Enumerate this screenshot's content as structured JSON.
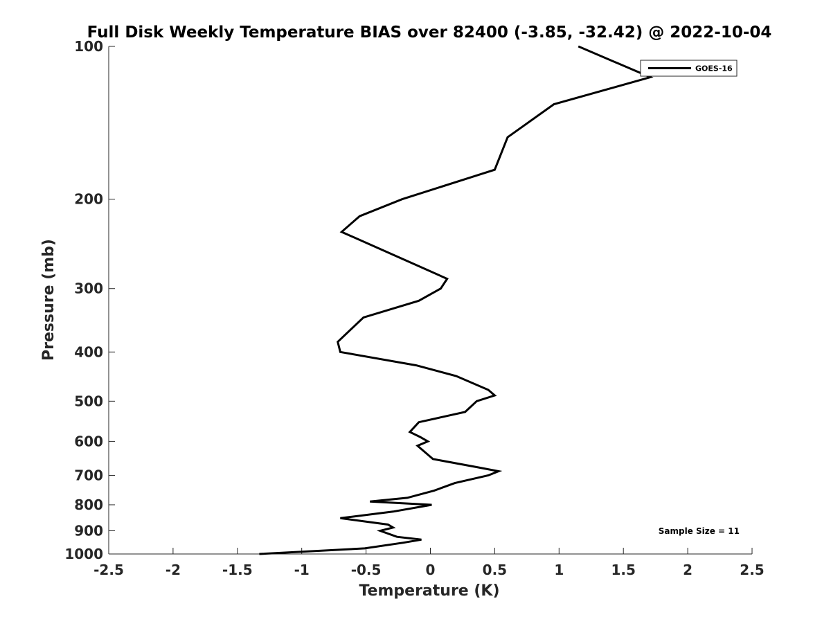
{
  "chart_data": {
    "type": "line",
    "title": "Full Disk Weekly Temperature BIAS over 82400 (-3.85, -32.42) @ 2022-10-04",
    "xlabel": "Temperature (K)",
    "ylabel": "Pressure (mb)",
    "xlim": [
      -2.5,
      2.5
    ],
    "ylim": [
      100,
      1000
    ],
    "y_scale": "log",
    "y_reversed": true,
    "x_ticks": [
      "-2.5",
      "-2",
      "-1.5",
      "-1",
      "-0.5",
      "0",
      "0.5",
      "1",
      "1.5",
      "2",
      "2.5"
    ],
    "x_tick_values": [
      -2.5,
      -2,
      -1.5,
      -1,
      -0.5,
      0,
      0.5,
      1,
      1.5,
      2,
      2.5
    ],
    "y_ticks": [
      "100",
      "200",
      "300",
      "400",
      "500",
      "600",
      "700",
      "800",
      "900",
      "1000"
    ],
    "y_tick_values": [
      100,
      200,
      300,
      400,
      500,
      600,
      700,
      800,
      900,
      1000
    ],
    "grid": false,
    "legend_position": "top-right",
    "annotation": "Sample Size = 11",
    "series": [
      {
        "name": "GOES-16",
        "color": "#000000",
        "points": [
          {
            "t": 1.15,
            "p": 100
          },
          {
            "t": 1.71,
            "p": 115
          },
          {
            "t": 0.96,
            "p": 130
          },
          {
            "t": 0.6,
            "p": 151
          },
          {
            "t": 0.5,
            "p": 175
          },
          {
            "t": -0.22,
            "p": 200
          },
          {
            "t": -0.55,
            "p": 216
          },
          {
            "t": -0.69,
            "p": 232
          },
          {
            "t": -0.22,
            "p": 262
          },
          {
            "t": 0.13,
            "p": 287
          },
          {
            "t": 0.08,
            "p": 300
          },
          {
            "t": -0.09,
            "p": 317
          },
          {
            "t": -0.52,
            "p": 342
          },
          {
            "t": -0.72,
            "p": 382
          },
          {
            "t": -0.7,
            "p": 400
          },
          {
            "t": -0.11,
            "p": 425
          },
          {
            "t": 0.2,
            "p": 446
          },
          {
            "t": 0.45,
            "p": 475
          },
          {
            "t": 0.5,
            "p": 487
          },
          {
            "t": 0.36,
            "p": 500
          },
          {
            "t": 0.27,
            "p": 525
          },
          {
            "t": -0.09,
            "p": 550
          },
          {
            "t": -0.16,
            "p": 575
          },
          {
            "t": -0.08,
            "p": 588
          },
          {
            "t": -0.02,
            "p": 600
          },
          {
            "t": -0.1,
            "p": 612
          },
          {
            "t": 0.02,
            "p": 650
          },
          {
            "t": 0.37,
            "p": 675
          },
          {
            "t": 0.53,
            "p": 687
          },
          {
            "t": 0.45,
            "p": 700
          },
          {
            "t": 0.19,
            "p": 725
          },
          {
            "t": 0.03,
            "p": 750
          },
          {
            "t": -0.18,
            "p": 775
          },
          {
            "t": -0.47,
            "p": 788
          },
          {
            "t": 0.01,
            "p": 800
          },
          {
            "t": -0.29,
            "p": 825
          },
          {
            "t": -0.7,
            "p": 850
          },
          {
            "t": -0.33,
            "p": 875
          },
          {
            "t": -0.29,
            "p": 887
          },
          {
            "t": -0.39,
            "p": 900
          },
          {
            "t": -0.26,
            "p": 925
          },
          {
            "t": -0.07,
            "p": 937
          },
          {
            "t": -0.21,
            "p": 950
          },
          {
            "t": -0.51,
            "p": 975
          },
          {
            "t": -1.33,
            "p": 1000
          }
        ]
      }
    ]
  }
}
